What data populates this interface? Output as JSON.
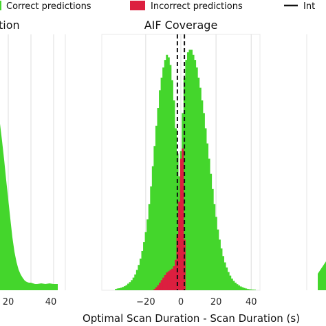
{
  "legend": {
    "correct_label": "Correct predictions",
    "incorrect_label": "Incorrect predictions",
    "threshold_label": "Int",
    "correct_color": "#44d62c",
    "incorrect_color": "#dc1f3f",
    "threshold_color": "#111111"
  },
  "left_panel": {
    "title": "tion",
    "tick_labels": [
      "20",
      "40"
    ]
  },
  "xlabel": "Optimal Scan Duration - Scan Duration (s)",
  "chart_data": {
    "type": "bar",
    "title": "AIF Coverage",
    "xlabel": "Optimal Scan Duration - Scan Duration (s)",
    "ylabel": "",
    "xlim": [
      -45,
      45
    ],
    "xticks": [
      -20,
      0,
      20,
      40
    ],
    "threshold_lines": [
      -2,
      2
    ],
    "grid": true,
    "series": [
      {
        "name": "Correct predictions",
        "color": "#44d62c",
        "bin_width": 1,
        "x": [
          -37,
          -36,
          -35,
          -34,
          -33,
          -32,
          -31,
          -30,
          -29,
          -28,
          -27,
          -26,
          -25,
          -24,
          -23,
          -22,
          -21,
          -20,
          -19,
          -18,
          -17,
          -16,
          -15,
          -14,
          -13,
          -12,
          -11,
          -10,
          -9,
          -8,
          -7,
          -6,
          -5,
          -4,
          -3,
          -2,
          -1,
          0,
          1,
          2,
          3,
          4,
          5,
          6,
          7,
          8,
          9,
          10,
          11,
          12,
          13,
          14,
          15,
          16,
          17,
          18,
          19,
          20,
          21,
          22,
          23,
          24,
          25,
          26,
          27,
          28,
          29,
          30,
          31,
          32,
          33,
          34,
          35,
          36,
          37,
          38,
          39,
          40,
          41,
          42
        ],
        "values": [
          0.5,
          0.7,
          0.8,
          1,
          1.3,
          1.6,
          2,
          2.6,
          3.2,
          4,
          5,
          6.2,
          8,
          10,
          12.5,
          15.5,
          19,
          23,
          28,
          34,
          41,
          49,
          57,
          65,
          72,
          79,
          84,
          88,
          91,
          93,
          92,
          89,
          83,
          75,
          64,
          54,
          45,
          55,
          70,
          84,
          91,
          94,
          95,
          95,
          93,
          91,
          88,
          84,
          80,
          75,
          70,
          64,
          58,
          52,
          46,
          40,
          34,
          29,
          24,
          20,
          16.5,
          13.5,
          11,
          9,
          7.2,
          5.8,
          4.6,
          3.7,
          3,
          2.4,
          1.9,
          1.5,
          1.2,
          0.9,
          0.7,
          0.5,
          0.4,
          0.3,
          0.25,
          0.2
        ]
      },
      {
        "name": "Incorrect predictions",
        "color": "#dc1f3f",
        "bin_width": 1,
        "x": [
          -15,
          -14,
          -13,
          -12,
          -11,
          -10,
          -9,
          -8,
          -7,
          -6,
          -5,
          -4,
          -3,
          -2,
          -1,
          0,
          1,
          2
        ],
        "values": [
          0.5,
          1.2,
          2,
          3,
          4,
          5,
          6,
          7,
          7.5,
          8,
          8.5,
          9.5,
          12,
          22,
          35,
          52,
          56,
          20
        ]
      }
    ]
  }
}
